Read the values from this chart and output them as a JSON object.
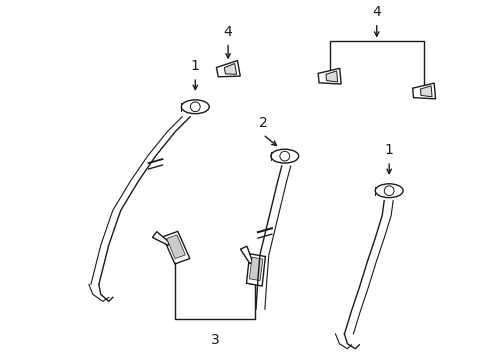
{
  "bg_color": "#ffffff",
  "line_color": "#1a1a1a",
  "figsize": [
    4.89,
    3.6
  ],
  "dpi": 100,
  "lw": 1.0
}
